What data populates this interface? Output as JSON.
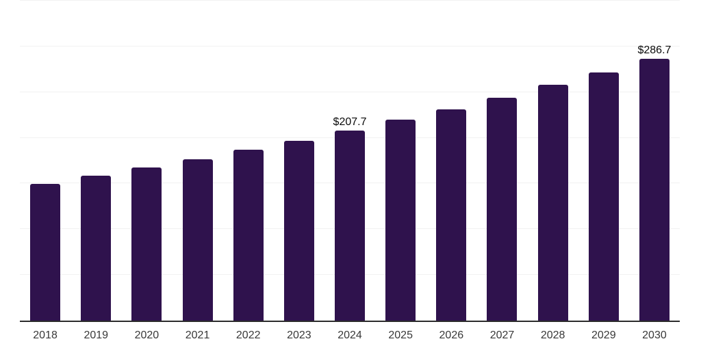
{
  "chart_data": {
    "type": "bar",
    "title": "",
    "xlabel": "",
    "ylabel": "",
    "categories": [
      "2018",
      "2019",
      "2020",
      "2021",
      "2022",
      "2023",
      "2024",
      "2025",
      "2026",
      "2027",
      "2028",
      "2029",
      "2030"
    ],
    "values": [
      149.4,
      158.4,
      167.8,
      176.8,
      186.9,
      197.0,
      207.7,
      219.6,
      231.3,
      244.0,
      258.0,
      271.8,
      286.7
    ],
    "data_labels": [
      "",
      "",
      "",
      "",
      "",
      "",
      "$207.7",
      "",
      "",
      "",
      "",
      "",
      "$286.7"
    ],
    "ylim": [
      0,
      350
    ],
    "gridline_step": 50,
    "grid": true,
    "legend": false,
    "colors": {
      "bar": "#2F124D",
      "gridline": "#F1F1F1",
      "axis_line": "#2B2B2B",
      "tick_label": "#383838",
      "data_label": "#0A0A0A",
      "background": "#FFFFFF"
    }
  }
}
